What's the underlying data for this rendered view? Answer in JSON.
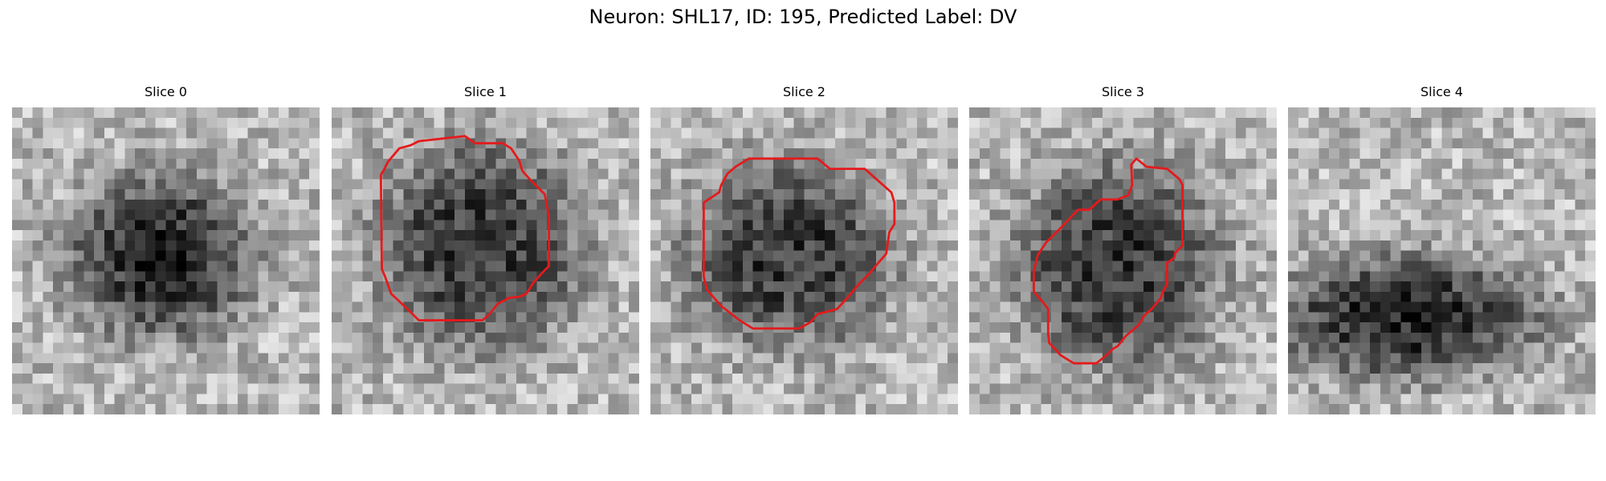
{
  "figure": {
    "title": "Neuron: SHL17, ID: 195, Predicted Label: DV",
    "outline_color": "#e41a1c",
    "colormap": "gray"
  },
  "panels": [
    {
      "title": "Slice 0",
      "has_outline": false,
      "blob": {
        "cx": 14,
        "cy": 14,
        "rx": 9,
        "ry": 8,
        "depth": 0.55
      },
      "outline": []
    },
    {
      "title": "Slice 1",
      "has_outline": true,
      "blob": {
        "cx": 14,
        "cy": 13,
        "rx": 10,
        "ry": 10,
        "depth": 0.5
      },
      "outline": [
        [
          8.5,
          3.3
        ],
        [
          13,
          2.8
        ],
        [
          14,
          3.5
        ],
        [
          16.7,
          3.5
        ],
        [
          17.5,
          4
        ],
        [
          18.3,
          5.2
        ],
        [
          18.6,
          6.2
        ],
        [
          19.5,
          7.2
        ],
        [
          20.8,
          8.5
        ],
        [
          21.2,
          10.7
        ],
        [
          21.2,
          15.5
        ],
        [
          20.7,
          16
        ],
        [
          19.7,
          17.1
        ],
        [
          19,
          18.2
        ],
        [
          18.3,
          18.5
        ],
        [
          17.3,
          18.6
        ],
        [
          16.2,
          19.2
        ],
        [
          15.3,
          20.3
        ],
        [
          14.7,
          20.8
        ],
        [
          8.5,
          20.8
        ],
        [
          7.3,
          19.6
        ],
        [
          5.8,
          18.2
        ],
        [
          5.2,
          16.5
        ],
        [
          4.9,
          15.8
        ],
        [
          4.8,
          6.6
        ],
        [
          5.1,
          6.1
        ],
        [
          5.5,
          5.3
        ],
        [
          6.6,
          4
        ],
        [
          7.7,
          3.7
        ]
      ],
      "outline_units": "pixels"
    },
    {
      "title": "Slice 2",
      "has_outline": true,
      "blob": {
        "cx": 13,
        "cy": 14,
        "rx": 10,
        "ry": 9,
        "depth": 0.5
      },
      "outline": [
        [
          9.6,
          5
        ],
        [
          16.3,
          5
        ],
        [
          17.5,
          6
        ],
        [
          20.9,
          6
        ],
        [
          23.5,
          8.3
        ],
        [
          23.8,
          9.3
        ],
        [
          23.8,
          11.4
        ],
        [
          23.3,
          12.2
        ],
        [
          23.1,
          13.6
        ],
        [
          23,
          14.3
        ],
        [
          22.3,
          15.1
        ],
        [
          21.3,
          16.3
        ],
        [
          20.3,
          17.3
        ],
        [
          19.3,
          18.5
        ],
        [
          18.2,
          19.7
        ],
        [
          16.3,
          20.2
        ],
        [
          15.6,
          21
        ],
        [
          14.5,
          21.6
        ],
        [
          10,
          21.6
        ],
        [
          8.7,
          20.8
        ],
        [
          6.9,
          19.4
        ],
        [
          5.5,
          17.8
        ],
        [
          5.2,
          16.5
        ],
        [
          5.2,
          9.3
        ],
        [
          6.7,
          8.3
        ],
        [
          6.9,
          7.6
        ],
        [
          7.5,
          6.5
        ],
        [
          8.3,
          5.8
        ]
      ],
      "outline_units": "pixels"
    },
    {
      "title": "Slice 3",
      "has_outline": true,
      "blob": {
        "cx": 14,
        "cy": 15,
        "rx": 10,
        "ry": 10,
        "depth": 0.5
      },
      "outline": [
        [
          16.3,
          5
        ],
        [
          17.3,
          5.8
        ],
        [
          19.3,
          6
        ],
        [
          20.5,
          7
        ],
        [
          20.8,
          7.6
        ],
        [
          20.8,
          13.5
        ],
        [
          20.1,
          14.2
        ],
        [
          20,
          14.7
        ],
        [
          19.3,
          15.2
        ],
        [
          19.3,
          17.3
        ],
        [
          18.9,
          18
        ],
        [
          18.7,
          18.6
        ],
        [
          17.8,
          19.7
        ],
        [
          17.1,
          20.3
        ],
        [
          16.5,
          21.3
        ],
        [
          15.3,
          22.3
        ],
        [
          14.5,
          23.3
        ],
        [
          14,
          23.6
        ],
        [
          13.4,
          24.2
        ],
        [
          12.4,
          25
        ],
        [
          10.2,
          25
        ],
        [
          8.9,
          24.2
        ],
        [
          7.8,
          23
        ],
        [
          7.7,
          22.1
        ],
        [
          7.7,
          19.7
        ],
        [
          7,
          18.8
        ],
        [
          6.3,
          18
        ],
        [
          6.3,
          16
        ],
        [
          6.7,
          14.4
        ],
        [
          7.5,
          13.2
        ],
        [
          8.8,
          11.9
        ],
        [
          10.6,
          10
        ],
        [
          11.7,
          10
        ],
        [
          12.8,
          9
        ],
        [
          14.4,
          9
        ],
        [
          15.5,
          8.6
        ],
        [
          15.9,
          7.6
        ],
        [
          15.8,
          5.6
        ]
      ],
      "outline_units": "pixels"
    },
    {
      "title": "Slice 4",
      "has_outline": false,
      "blob": {
        "cx": 11,
        "cy": 20,
        "rx": 13,
        "ry": 6,
        "depth": 0.55
      },
      "outline": []
    }
  ]
}
